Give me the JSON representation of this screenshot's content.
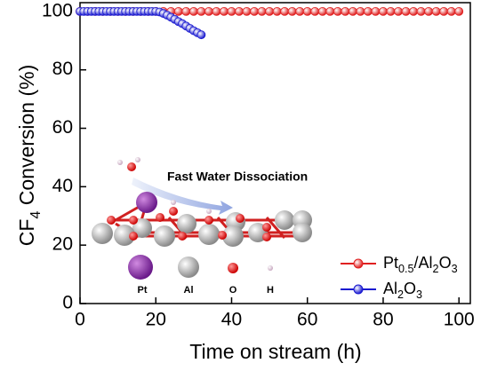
{
  "chart_data": {
    "type": "line",
    "x_label": "Time on stream (h)",
    "y_label": "CF4 Conversion (%)",
    "xlim": [
      0,
      103
    ],
    "ylim": [
      0,
      103
    ],
    "xticks": [
      0,
      20,
      40,
      60,
      80,
      100
    ],
    "yticks": [
      0,
      20,
      40,
      60,
      80,
      100
    ],
    "legend_position": "lower right",
    "series": [
      {
        "name": "Pt0.5/Al2O3",
        "color": "#e02020",
        "x": [
          0,
          2,
          4,
          6,
          8,
          10,
          12,
          14,
          16,
          18,
          20,
          22,
          24,
          26,
          28,
          30,
          32,
          34,
          36,
          38,
          40,
          42,
          44,
          46,
          48,
          50,
          52,
          54,
          56,
          58,
          60,
          62,
          64,
          66,
          68,
          70,
          72,
          74,
          76,
          78,
          80,
          82,
          84,
          86,
          88,
          90,
          92,
          94,
          96,
          98,
          100
        ],
        "values": [
          100,
          100,
          100,
          100,
          100,
          100,
          100,
          100,
          100,
          100,
          100,
          100,
          100,
          100,
          100,
          100,
          100,
          100,
          100,
          100,
          100,
          100,
          100,
          100,
          100,
          100,
          100,
          100,
          100,
          100,
          100,
          100,
          100,
          100,
          100,
          100,
          100,
          100,
          100,
          100,
          100,
          100,
          100,
          100,
          100,
          100,
          100,
          100,
          100,
          100,
          100
        ]
      },
      {
        "name": "Al2O3",
        "color": "#1a1ad0",
        "x": [
          0,
          1,
          2,
          3,
          4,
          5,
          6,
          7,
          8,
          9,
          10,
          11,
          12,
          13,
          14,
          15,
          16,
          17,
          18,
          19,
          20,
          21,
          22,
          23,
          24,
          25,
          26,
          27,
          28,
          29,
          30,
          31,
          32
        ],
        "values": [
          100,
          100,
          100,
          100,
          100,
          100,
          100,
          100,
          100,
          100,
          100,
          100,
          100,
          100,
          100,
          100,
          100,
          100,
          100,
          100,
          100,
          99.8,
          99.3,
          98.7,
          98,
          97.3,
          96.5,
          95.8,
          95,
          94.2,
          93.4,
          92.7,
          92
        ]
      }
    ],
    "annotations": {
      "arrow_label": "Fast Water Dissociation",
      "atoms": [
        "Pt",
        "Al",
        "O",
        "H"
      ]
    }
  }
}
